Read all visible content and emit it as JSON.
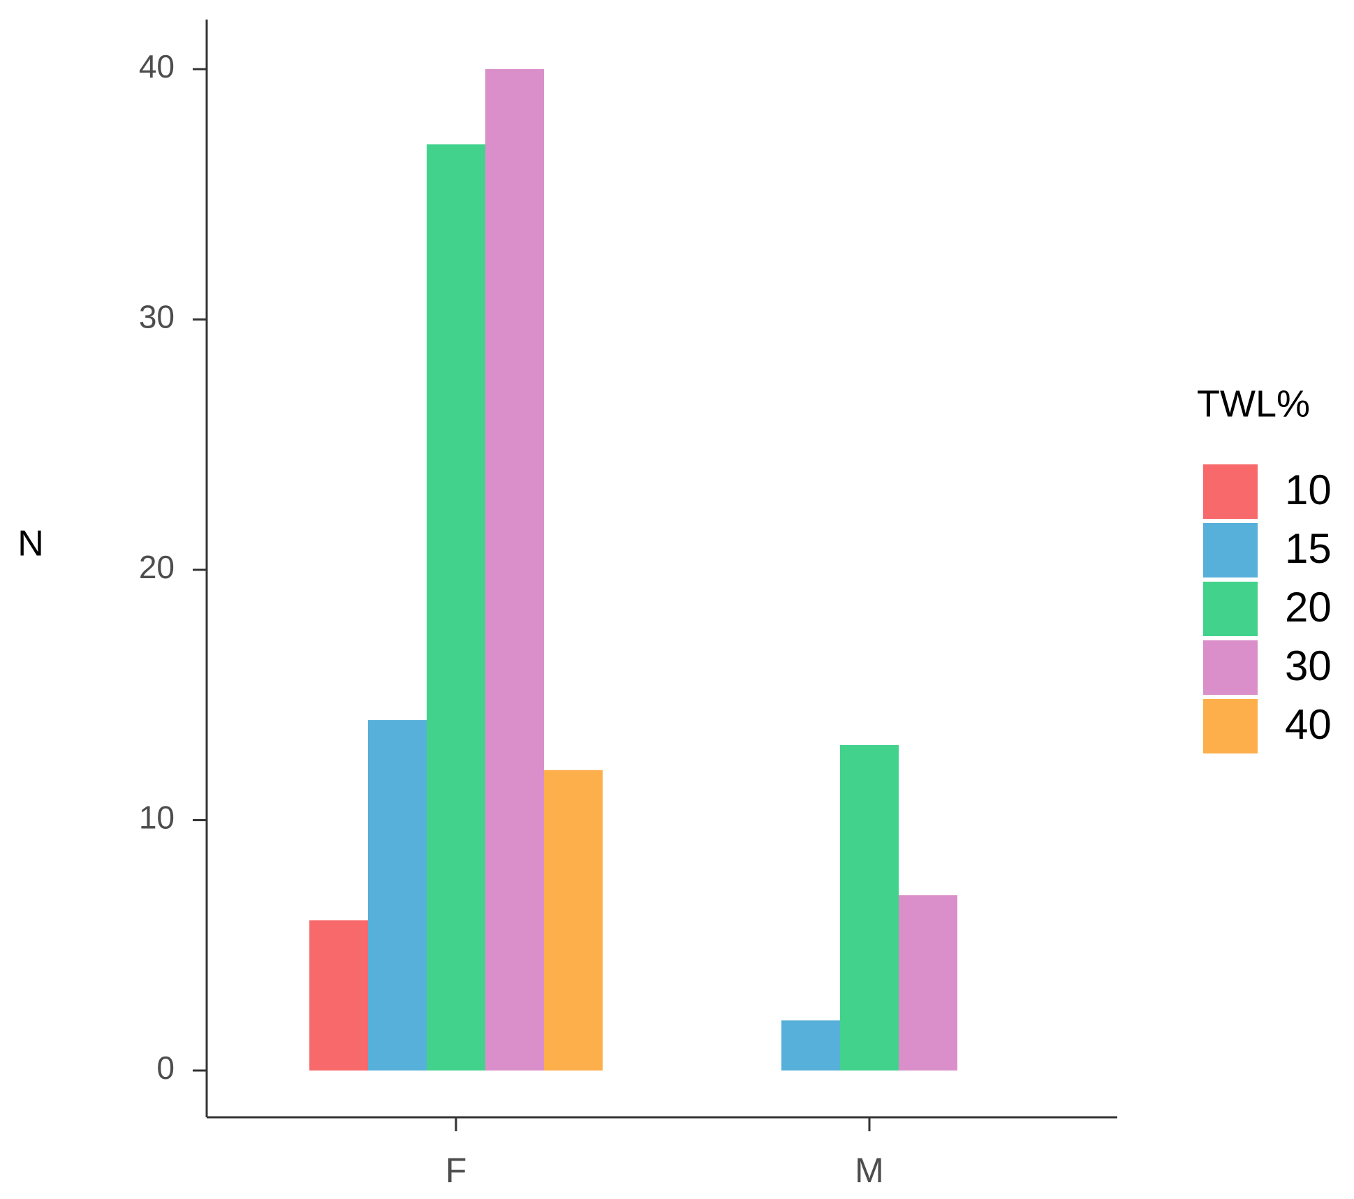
{
  "chart_data": {
    "type": "bar",
    "title": "",
    "xlabel": "",
    "ylabel": "N",
    "categories": [
      "F",
      "M"
    ],
    "yticks": [
      "0",
      "10",
      "20",
      "30",
      "40"
    ],
    "ylim": [
      0,
      42
    ],
    "grid": false,
    "legend": {
      "title": "TWL%",
      "position": "right"
    },
    "series": [
      {
        "name": "10",
        "color": "#F8696B",
        "values": [
          6,
          null
        ]
      },
      {
        "name": "15",
        "color": "#57B0D9",
        "values": [
          14,
          2
        ]
      },
      {
        "name": "20",
        "color": "#42D28C",
        "values": [
          37,
          13
        ]
      },
      {
        "name": "30",
        "color": "#DA8FCA",
        "values": [
          40,
          7
        ]
      },
      {
        "name": "40",
        "color": "#FCAF4A",
        "values": [
          12,
          null
        ]
      }
    ]
  }
}
